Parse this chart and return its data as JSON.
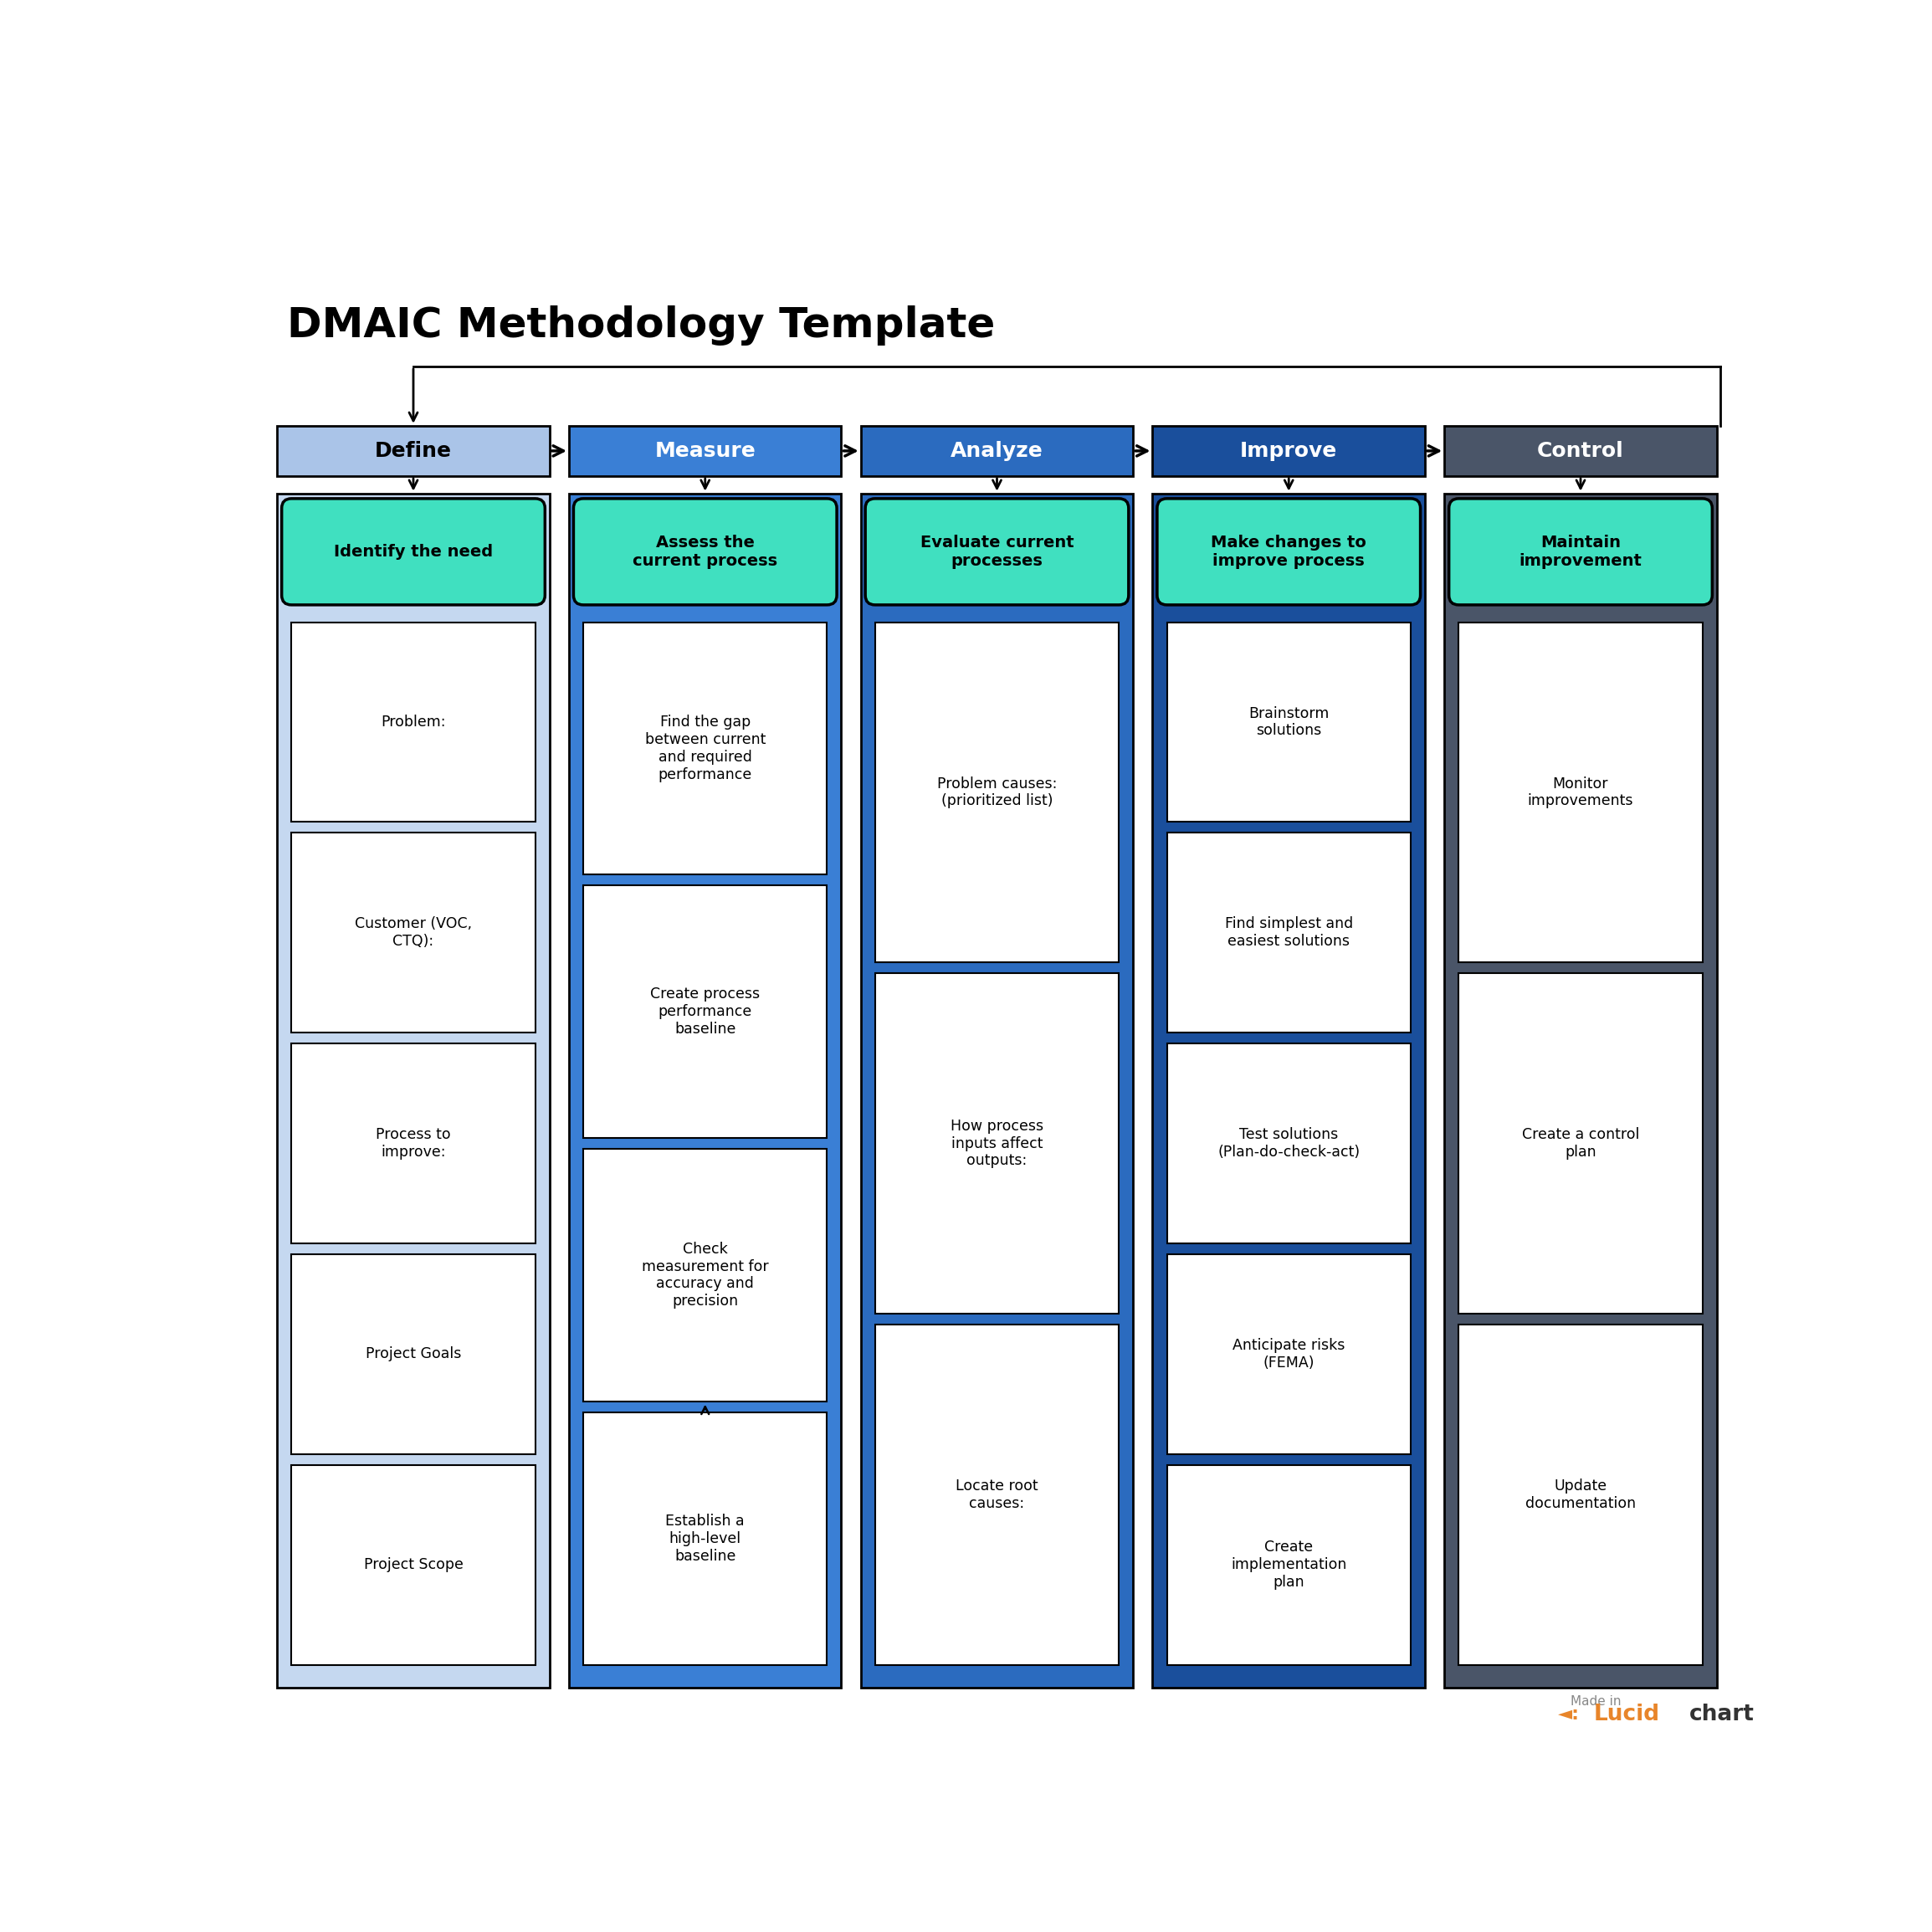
{
  "title": "DMAIC Methodology Template",
  "title_fontsize": 36,
  "bg_color": "#ffffff",
  "phases": [
    {
      "name": "Define",
      "color": "#aac4e8",
      "text_color": "#000000"
    },
    {
      "name": "Measure",
      "color": "#3a7fd5",
      "text_color": "#ffffff"
    },
    {
      "name": "Analyze",
      "color": "#2b6bbf",
      "text_color": "#ffffff"
    },
    {
      "name": "Improve",
      "color": "#1a4f9c",
      "text_color": "#ffffff"
    },
    {
      "name": "Control",
      "color": "#4a5568",
      "text_color": "#ffffff"
    }
  ],
  "column_colors": [
    "#c5d8f0",
    "#3a7fd5",
    "#2b6bbf",
    "#1a4f9c",
    "#4a5568"
  ],
  "subtitles": [
    "Identify the need",
    "Assess the\ncurrent process",
    "Evaluate current\nprocesses",
    "Make changes to\nimprove process",
    "Maintain\nimprovement"
  ],
  "items": [
    [
      "Problem:",
      "Customer (VOC,\nCTQ):",
      "Process to\nimprove:",
      "Project Goals",
      "Project Scope"
    ],
    [
      "Find the gap\nbetween current\nand required\nperformance",
      "Create process\nperformance\nbaseline",
      "Check\nmeasurement for\naccuracy and\nprecision",
      "Establish a\nhigh-level\nbaseline"
    ],
    [
      "Problem causes:\n(prioritized list)",
      "How process\ninputs affect\noutputs:",
      "Locate root\ncauses:"
    ],
    [
      "Brainstorm\nsolutions",
      "Find simplest and\neasiest solutions",
      "Test solutions\n(Plan-do-check-act)",
      "Anticipate risks\n(FEMA)",
      "Create\nimplementation\nplan"
    ],
    [
      "Monitor\nimprovements",
      "Create a control\nplan",
      "Update\ndocumentation"
    ]
  ],
  "subtitle_bg": "#40e0c0",
  "subtitle_text_color": "#000000"
}
